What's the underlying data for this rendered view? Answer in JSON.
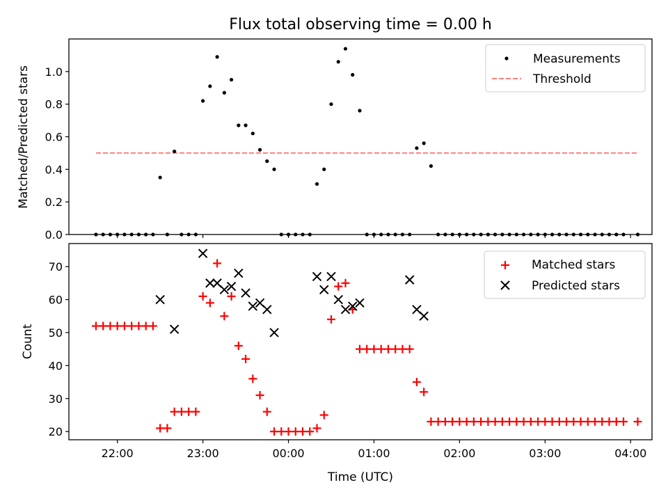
{
  "title": "Flux total observing time = 0.00 h",
  "xlabel": "Time (UTC)",
  "chart_data": [
    {
      "type": "scatter",
      "ylabel": "Matched/Predicted stars",
      "xlim": [
        "21:26",
        "04:15"
      ],
      "ylim": [
        0,
        1.2
      ],
      "yticks": [
        "0.0",
        "0.2",
        "0.4",
        "0.6",
        "0.8",
        "1.0"
      ],
      "legend_position": "top-right",
      "threshold": {
        "name": "Threshold",
        "value": 0.5,
        "x": [
          "21:45",
          "04:05"
        ],
        "color": "#ff7f7f",
        "style": "dashed"
      },
      "series": [
        {
          "name": "Measurements",
          "color": "#000000",
          "marker": "dot",
          "x": [
            "21:45",
            "21:50",
            "21:55",
            "22:00",
            "22:05",
            "22:10",
            "22:15",
            "22:20",
            "22:25",
            "22:30",
            "22:35",
            "22:40",
            "22:45",
            "22:50",
            "22:55",
            "23:00",
            "23:05",
            "23:10",
            "23:15",
            "23:20",
            "23:25",
            "23:30",
            "23:35",
            "23:40",
            "23:45",
            "23:50",
            "23:55",
            "00:00",
            "00:05",
            "00:10",
            "00:15",
            "00:20",
            "00:25",
            "00:30",
            "00:35",
            "00:40",
            "00:45",
            "00:50",
            "00:55",
            "01:00",
            "01:05",
            "01:10",
            "01:15",
            "01:20",
            "01:25",
            "01:30",
            "01:35",
            "01:40",
            "01:45",
            "01:50",
            "01:55",
            "02:00",
            "02:05",
            "02:10",
            "02:15",
            "02:20",
            "02:25",
            "02:30",
            "02:35",
            "02:40",
            "02:45",
            "02:50",
            "02:55",
            "03:00",
            "03:05",
            "03:10",
            "03:15",
            "03:20",
            "03:25",
            "03:30",
            "03:35",
            "03:40",
            "03:45",
            "03:50",
            "03:55",
            "04:05"
          ],
          "y": [
            0,
            0,
            0,
            0,
            0,
            0,
            0,
            0,
            0,
            0.35,
            0,
            0.51,
            0,
            0,
            0,
            0.82,
            0.91,
            1.09,
            0.87,
            0.95,
            0.67,
            0.67,
            0.62,
            0.52,
            0.45,
            0.4,
            0,
            0,
            0,
            0,
            0,
            0.31,
            0.4,
            0.8,
            1.06,
            1.14,
            0.98,
            0.76,
            0,
            0,
            0,
            0,
            0,
            0,
            0,
            0.53,
            0.56,
            0.42,
            0,
            0,
            0,
            0,
            0,
            0,
            0,
            0,
            0,
            0,
            0,
            0,
            0,
            0,
            0,
            0,
            0,
            0,
            0,
            0,
            0,
            0,
            0,
            0,
            0,
            0,
            0,
            0
          ]
        }
      ]
    },
    {
      "type": "scatter",
      "ylabel": "Count",
      "xlim": [
        "21:26",
        "04:15"
      ],
      "ylim": [
        17.5,
        77
      ],
      "yticks": [
        "20",
        "30",
        "40",
        "50",
        "60",
        "70"
      ],
      "xticks": [
        "22:00",
        "23:00",
        "00:00",
        "01:00",
        "02:00",
        "03:00",
        "04:00"
      ],
      "legend_position": "top-right",
      "series": [
        {
          "name": "Matched stars",
          "color": "#ff0000",
          "marker": "plus",
          "x": [
            "21:45",
            "21:50",
            "21:55",
            "22:00",
            "22:05",
            "22:10",
            "22:15",
            "22:20",
            "22:25",
            "22:30",
            "22:35",
            "22:40",
            "22:45",
            "22:50",
            "22:55",
            "23:00",
            "23:05",
            "23:10",
            "23:15",
            "23:20",
            "23:25",
            "23:30",
            "23:35",
            "23:40",
            "23:45",
            "23:50",
            "23:55",
            "00:00",
            "00:05",
            "00:10",
            "00:15",
            "00:20",
            "00:25",
            "00:30",
            "00:35",
            "00:40",
            "00:45",
            "00:50",
            "00:55",
            "01:00",
            "01:05",
            "01:10",
            "01:15",
            "01:20",
            "01:25",
            "01:30",
            "01:35",
            "01:40",
            "01:45",
            "01:50",
            "01:55",
            "02:00",
            "02:05",
            "02:10",
            "02:15",
            "02:20",
            "02:25",
            "02:30",
            "02:35",
            "02:40",
            "02:45",
            "02:50",
            "02:55",
            "03:00",
            "03:05",
            "03:10",
            "03:15",
            "03:20",
            "03:25",
            "03:30",
            "03:35",
            "03:40",
            "03:45",
            "03:50",
            "03:55",
            "04:05"
          ],
          "y": [
            52,
            52,
            52,
            52,
            52,
            52,
            52,
            52,
            52,
            21,
            21,
            26,
            26,
            26,
            26,
            61,
            59,
            71,
            55,
            61,
            46,
            42,
            36,
            31,
            26,
            20,
            20,
            20,
            20,
            20,
            20,
            21,
            25,
            54,
            64,
            65,
            57,
            45,
            45,
            45,
            45,
            45,
            45,
            45,
            45,
            35,
            32,
            23,
            23,
            23,
            23,
            23,
            23,
            23,
            23,
            23,
            23,
            23,
            23,
            23,
            23,
            23,
            23,
            23,
            23,
            23,
            23,
            23,
            23,
            23,
            23,
            23,
            23,
            23,
            23,
            23
          ]
        },
        {
          "name": "Predicted stars",
          "color": "#000000",
          "marker": "x",
          "x": [
            "22:30",
            "22:40",
            "23:00",
            "23:05",
            "23:10",
            "23:15",
            "23:20",
            "23:25",
            "23:30",
            "23:35",
            "23:40",
            "23:45",
            "23:50",
            "00:20",
            "00:25",
            "00:30",
            "00:35",
            "00:40",
            "00:45",
            "00:50",
            "01:25",
            "01:30",
            "01:35"
          ],
          "y": [
            60,
            51,
            74,
            65,
            65,
            63,
            64,
            68,
            62,
            58,
            59,
            57,
            50,
            67,
            63,
            67,
            60,
            57,
            58,
            59,
            66,
            57,
            55
          ]
        }
      ]
    }
  ]
}
